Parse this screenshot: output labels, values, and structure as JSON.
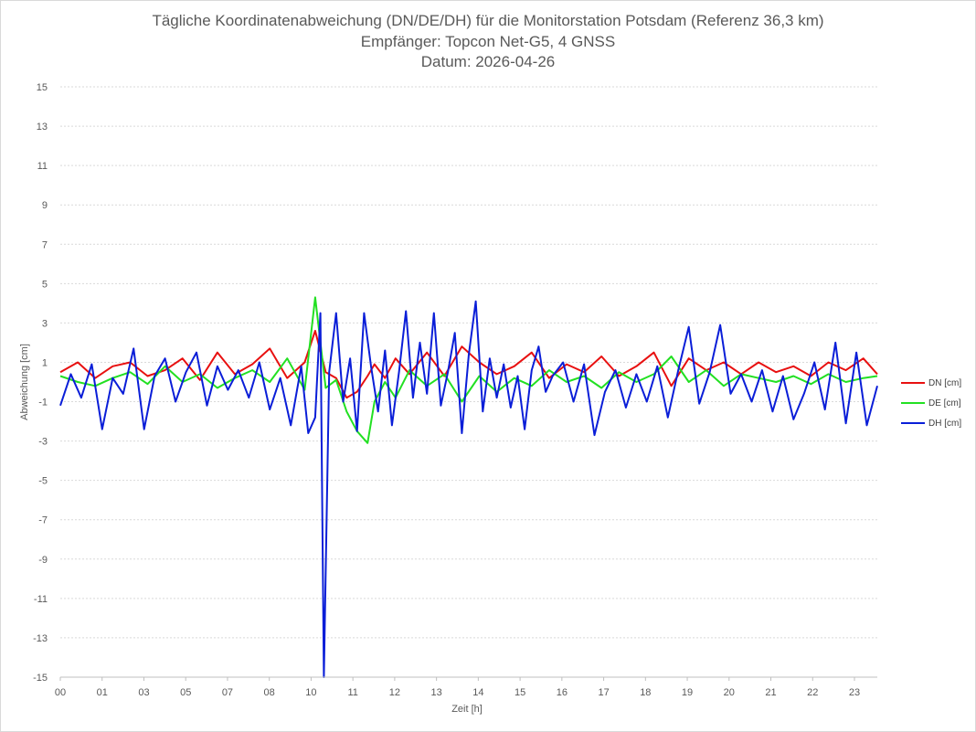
{
  "chart_data": {
    "type": "line",
    "title": "Tägliche Koordinatenabweichung (DN/DE/DH) für die Monitorstation Potsdam (Referenz 36,3 km)",
    "subtitle": "Empfänger: Topcon Net-G5, 4 GNSS",
    "date_line": "Datum: 2026-04-26",
    "xlabel": "Zeit [h]",
    "ylabel": "Abweichung [cm]",
    "xlim": [
      0,
      23.4
    ],
    "ylim": [
      -15,
      15
    ],
    "x_ticks": [
      "00",
      "01",
      "03",
      "05",
      "07",
      "08",
      "10",
      "11",
      "12",
      "13",
      "14",
      "15",
      "16",
      "17",
      "18",
      "19",
      "20",
      "21",
      "22",
      "23"
    ],
    "y_ticks": [
      15,
      13,
      11,
      9,
      7,
      5,
      3,
      1,
      -1,
      -3,
      -5,
      -7,
      -9,
      -11,
      -13,
      -15
    ],
    "grid": true,
    "legend_position": "right",
    "series": [
      {
        "name": "DN [cm]",
        "color": "#e81010",
        "x": [
          0,
          0.5,
          1,
          1.5,
          2,
          2.5,
          3,
          3.5,
          4,
          4.5,
          5,
          5.5,
          6,
          6.5,
          7,
          7.3,
          7.6,
          7.9,
          8.2,
          8.5,
          8.8,
          9,
          9.3,
          9.6,
          10,
          10.5,
          11,
          11.5,
          12,
          12.5,
          13,
          13.5,
          14,
          14.5,
          15,
          15.5,
          16,
          16.5,
          17,
          17.5,
          18,
          18.5,
          19,
          19.5,
          20,
          20.5,
          21,
          21.5,
          22,
          22.5,
          23,
          23.4
        ],
        "values": [
          0.5,
          1.0,
          0.2,
          0.8,
          1.0,
          0.3,
          0.6,
          1.2,
          0.1,
          1.5,
          0.4,
          0.9,
          1.7,
          0.2,
          1.0,
          2.6,
          0.5,
          0.2,
          -0.8,
          -0.5,
          0.3,
          0.9,
          0.2,
          1.2,
          0.4,
          1.5,
          0.3,
          1.8,
          1.0,
          0.4,
          0.8,
          1.5,
          0.2,
          0.9,
          0.5,
          1.3,
          0.3,
          0.8,
          1.5,
          -0.2,
          1.2,
          0.6,
          1.0,
          0.4,
          1.0,
          0.5,
          0.8,
          0.3,
          1.0,
          0.6,
          1.2,
          0.4
        ]
      },
      {
        "name": "DE [cm]",
        "color": "#22e022",
        "x": [
          0,
          0.5,
          1,
          1.5,
          2,
          2.5,
          3,
          3.5,
          4,
          4.5,
          5,
          5.5,
          6,
          6.5,
          7,
          7.3,
          7.6,
          7.9,
          8.2,
          8.5,
          8.8,
          9,
          9.3,
          9.6,
          10,
          10.5,
          11,
          11.5,
          12,
          12.5,
          13,
          13.5,
          14,
          14.5,
          15,
          15.5,
          16,
          16.5,
          17,
          17.5,
          18,
          18.5,
          19,
          19.5,
          20,
          20.5,
          21,
          21.5,
          22,
          22.5,
          23,
          23.4
        ],
        "values": [
          0.3,
          0.0,
          -0.2,
          0.2,
          0.5,
          -0.1,
          0.8,
          0.0,
          0.4,
          -0.3,
          0.2,
          0.6,
          0.0,
          1.2,
          -0.4,
          4.3,
          -0.3,
          0.1,
          -1.5,
          -2.5,
          -3.1,
          -1.0,
          0.0,
          -0.8,
          0.6,
          -0.2,
          0.4,
          -1.0,
          0.3,
          -0.5,
          0.2,
          -0.2,
          0.6,
          0.0,
          0.3,
          -0.3,
          0.5,
          0.0,
          0.4,
          1.3,
          0.0,
          0.6,
          -0.2,
          0.4,
          0.2,
          0.0,
          0.3,
          -0.1,
          0.4,
          0.0,
          0.2,
          0.3
        ]
      },
      {
        "name": "DH [cm]",
        "color": "#0a1ed8",
        "x": [
          0,
          0.3,
          0.6,
          0.9,
          1.2,
          1.5,
          1.8,
          2.1,
          2.4,
          2.7,
          3,
          3.3,
          3.6,
          3.9,
          4.2,
          4.5,
          4.8,
          5.1,
          5.4,
          5.7,
          6,
          6.3,
          6.6,
          6.9,
          7.1,
          7.3,
          7.45,
          7.55,
          7.7,
          7.9,
          8.1,
          8.3,
          8.5,
          8.7,
          8.9,
          9.1,
          9.3,
          9.5,
          9.7,
          9.9,
          10.1,
          10.3,
          10.5,
          10.7,
          10.9,
          11.1,
          11.3,
          11.5,
          11.7,
          11.9,
          12.1,
          12.3,
          12.5,
          12.7,
          12.9,
          13.1,
          13.3,
          13.5,
          13.7,
          13.9,
          14.1,
          14.4,
          14.7,
          15,
          15.3,
          15.6,
          15.9,
          16.2,
          16.5,
          16.8,
          17.1,
          17.4,
          17.7,
          18,
          18.3,
          18.6,
          18.9,
          19.2,
          19.5,
          19.8,
          20.1,
          20.4,
          20.7,
          21,
          21.3,
          21.6,
          21.9,
          22.2,
          22.5,
          22.8,
          23.1,
          23.4
        ],
        "values": [
          -1.2,
          0.4,
          -0.8,
          0.9,
          -2.4,
          0.2,
          -0.6,
          1.7,
          -2.4,
          0.3,
          1.2,
          -1.0,
          0.5,
          1.5,
          -1.2,
          0.8,
          -0.4,
          0.6,
          -0.8,
          1.0,
          -1.4,
          0.2,
          -2.2,
          0.8,
          -2.6,
          -1.8,
          3.5,
          -15,
          0.5,
          3.5,
          -1.0,
          1.2,
          -2.5,
          3.5,
          0.8,
          -1.5,
          1.6,
          -2.2,
          0.5,
          3.6,
          -0.8,
          2.0,
          -0.6,
          3.5,
          -1.2,
          0.5,
          2.5,
          -2.6,
          1.4,
          4.1,
          -1.5,
          1.2,
          -0.8,
          0.9,
          -1.3,
          0.3,
          -2.4,
          0.6,
          1.8,
          -0.5,
          0.3,
          1.0,
          -1.0,
          0.9,
          -2.7,
          -0.5,
          0.6,
          -1.3,
          0.4,
          -1.0,
          0.8,
          -1.8,
          0.6,
          2.8,
          -1.1,
          0.5,
          2.9,
          -0.6,
          0.4,
          -1.0,
          0.6,
          -1.5,
          0.3,
          -1.9,
          -0.6,
          1.0,
          -1.4,
          2.0,
          -2.1,
          1.5,
          -2.2,
          -0.2
        ]
      }
    ]
  }
}
